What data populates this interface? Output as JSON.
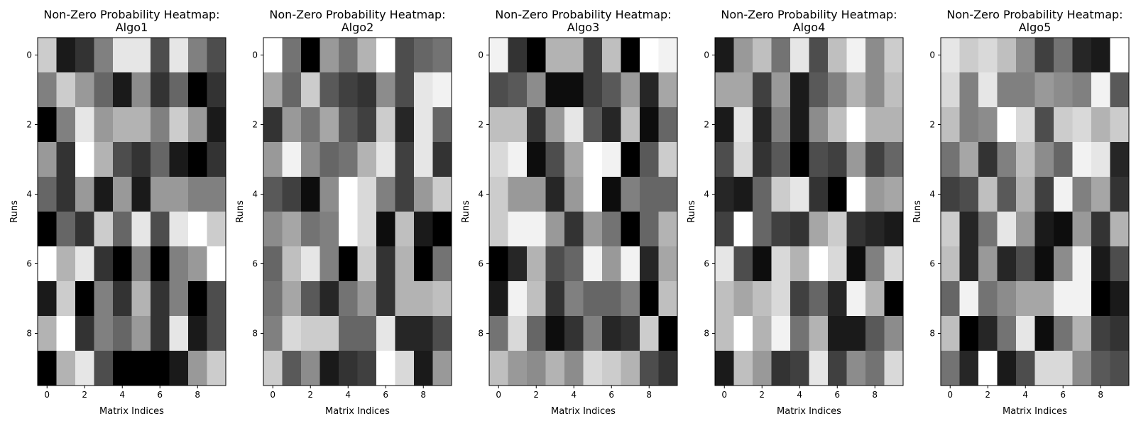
{
  "chart_data": [
    {
      "type": "heatmap",
      "colormap": "gray",
      "title_line1": "Non-Zero Probability Heatmap:",
      "title_line2": "Algo1",
      "xlabel": "Matrix Indices",
      "ylabel": "Runs",
      "x_ticks": [
        "0",
        "2",
        "4",
        "6",
        "8"
      ],
      "y_ticks": [
        "0",
        "2",
        "4",
        "6",
        "8"
      ],
      "values": [
        [
          0.8,
          0.1,
          0.2,
          0.5,
          0.9,
          0.9,
          0.3,
          0.9,
          0.5,
          0.3
        ],
        [
          0.5,
          0.8,
          0.6,
          0.4,
          0.1,
          0.55,
          0.2,
          0.4,
          0.0,
          0.2
        ],
        [
          0.0,
          0.5,
          0.9,
          0.6,
          0.7,
          0.7,
          0.5,
          0.8,
          0.6,
          0.1
        ],
        [
          0.6,
          0.2,
          1.0,
          0.7,
          0.3,
          0.2,
          0.4,
          0.1,
          0.0,
          0.2
        ],
        [
          0.4,
          0.2,
          0.6,
          0.1,
          0.6,
          0.1,
          0.6,
          0.6,
          0.5,
          0.5
        ],
        [
          0.0,
          0.4,
          0.2,
          0.8,
          0.4,
          0.9,
          0.3,
          0.9,
          1.0,
          0.8
        ],
        [
          1.0,
          0.7,
          0.9,
          0.2,
          0.0,
          0.5,
          0.0,
          0.5,
          0.6,
          1.0
        ],
        [
          0.1,
          0.8,
          0.0,
          0.5,
          0.2,
          0.7,
          0.2,
          0.5,
          0.0,
          0.3
        ],
        [
          0.7,
          1.0,
          0.2,
          0.5,
          0.4,
          0.6,
          0.2,
          0.9,
          0.1,
          0.3
        ],
        [
          0.0,
          0.7,
          0.9,
          0.3,
          0.0,
          0.0,
          0.0,
          0.1,
          0.6,
          0.8
        ]
      ]
    },
    {
      "type": "heatmap",
      "colormap": "gray",
      "title_line1": "Non-Zero Probability Heatmap:",
      "title_line2": "Algo2",
      "xlabel": "Matrix Indices",
      "ylabel": "Runs",
      "x_ticks": [
        "0",
        "2",
        "4",
        "6",
        "8"
      ],
      "y_ticks": [
        "0",
        "2",
        "4",
        "6",
        "8"
      ],
      "values": [
        [
          1.0,
          0.45,
          0.0,
          0.6,
          0.45,
          0.7,
          1.0,
          0.3,
          0.4,
          0.45
        ],
        [
          0.65,
          0.4,
          0.8,
          0.35,
          0.25,
          0.2,
          0.55,
          0.3,
          0.9,
          0.95
        ],
        [
          0.2,
          0.6,
          0.45,
          0.65,
          0.35,
          0.25,
          0.8,
          0.15,
          0.9,
          0.4
        ],
        [
          0.6,
          0.95,
          0.55,
          0.4,
          0.45,
          0.7,
          0.9,
          0.25,
          0.9,
          0.2
        ],
        [
          0.35,
          0.25,
          0.05,
          0.55,
          1.0,
          0.85,
          0.5,
          0.25,
          0.6,
          0.8
        ],
        [
          0.55,
          0.65,
          0.45,
          0.5,
          1.0,
          0.85,
          0.05,
          0.75,
          0.1,
          0.0
        ],
        [
          0.4,
          0.75,
          0.9,
          0.5,
          0.0,
          0.8,
          0.2,
          0.7,
          0.0,
          0.45
        ],
        [
          0.45,
          0.65,
          0.35,
          0.15,
          0.45,
          0.6,
          0.2,
          0.7,
          0.7,
          0.75
        ],
        [
          0.5,
          0.85,
          0.8,
          0.8,
          0.4,
          0.4,
          0.9,
          0.15,
          0.15,
          0.3
        ],
        [
          0.8,
          0.35,
          0.55,
          0.1,
          0.2,
          0.25,
          1.0,
          0.85,
          0.1,
          0.6
        ]
      ]
    },
    {
      "type": "heatmap",
      "colormap": "gray",
      "title_line1": "Non-Zero Probability Heatmap:",
      "title_line2": "Algo3",
      "xlabel": "Matrix Indices",
      "ylabel": "Runs",
      "x_ticks": [
        "0",
        "2",
        "4",
        "6",
        "8"
      ],
      "y_ticks": [
        "0",
        "2",
        "4",
        "6",
        "8"
      ],
      "values": [
        [
          0.95,
          0.2,
          0.0,
          0.7,
          0.7,
          0.25,
          0.75,
          0.0,
          1.0,
          0.95
        ],
        [
          0.3,
          0.35,
          0.55,
          0.05,
          0.05,
          0.25,
          0.35,
          0.6,
          0.15,
          0.65
        ],
        [
          0.75,
          0.75,
          0.2,
          0.6,
          0.9,
          0.35,
          0.15,
          0.75,
          0.05,
          0.4
        ],
        [
          0.85,
          0.95,
          0.05,
          0.3,
          0.65,
          1.0,
          0.95,
          0.0,
          0.35,
          0.8
        ],
        [
          0.8,
          0.6,
          0.6,
          0.15,
          0.6,
          1.0,
          0.05,
          0.5,
          0.4,
          0.4
        ],
        [
          0.8,
          0.95,
          0.95,
          0.6,
          0.2,
          0.6,
          0.45,
          0.0,
          0.4,
          0.7
        ],
        [
          0.0,
          0.15,
          0.7,
          0.3,
          0.4,
          0.95,
          0.6,
          0.95,
          0.15,
          0.65
        ],
        [
          0.1,
          0.95,
          0.75,
          0.2,
          0.5,
          0.4,
          0.4,
          0.5,
          0.0,
          0.75
        ],
        [
          0.45,
          0.85,
          0.4,
          0.05,
          0.2,
          0.5,
          0.15,
          0.2,
          0.8,
          0.0
        ],
        [
          0.75,
          0.6,
          0.55,
          0.7,
          0.55,
          0.85,
          0.8,
          0.7,
          0.3,
          0.2
        ]
      ]
    },
    {
      "type": "heatmap",
      "colormap": "gray",
      "title_line1": "Non-Zero Probability Heatmap:",
      "title_line2": "Algo4",
      "xlabel": "Matrix Indices",
      "ylabel": "Runs",
      "x_ticks": [
        "0",
        "2",
        "4",
        "6",
        "8"
      ],
      "y_ticks": [
        "0",
        "2",
        "4",
        "6",
        "8"
      ],
      "values": [
        [
          0.1,
          0.6,
          0.75,
          0.45,
          0.9,
          0.3,
          0.75,
          0.95,
          0.55,
          0.8
        ],
        [
          0.65,
          0.65,
          0.25,
          0.6,
          0.1,
          0.35,
          0.5,
          0.7,
          0.55,
          0.75
        ],
        [
          0.1,
          0.9,
          0.15,
          0.5,
          0.1,
          0.55,
          0.75,
          1.0,
          0.7,
          0.7
        ],
        [
          0.3,
          0.85,
          0.2,
          0.35,
          0.0,
          0.3,
          0.25,
          0.6,
          0.25,
          0.4
        ],
        [
          0.15,
          0.1,
          0.4,
          0.8,
          0.9,
          0.2,
          0.0,
          1.0,
          0.6,
          0.65
        ],
        [
          0.25,
          1.0,
          0.4,
          0.25,
          0.2,
          0.65,
          0.8,
          0.2,
          0.15,
          0.1
        ],
        [
          0.9,
          0.3,
          0.05,
          0.85,
          0.7,
          1.0,
          0.85,
          0.05,
          0.5,
          0.85
        ],
        [
          0.75,
          0.65,
          0.75,
          0.85,
          0.25,
          0.4,
          0.15,
          0.95,
          0.7,
          0.0
        ],
        [
          0.75,
          1.0,
          0.7,
          0.95,
          0.45,
          0.7,
          0.1,
          0.1,
          0.35,
          0.55
        ],
        [
          0.1,
          0.75,
          0.6,
          0.2,
          0.25,
          0.9,
          0.25,
          0.55,
          0.45,
          0.85
        ]
      ]
    },
    {
      "type": "heatmap",
      "colormap": "gray",
      "title_line1": "Non-Zero Probability Heatmap:",
      "title_line2": "Algo5",
      "xlabel": "Matrix Indices",
      "ylabel": "Runs",
      "x_ticks": [
        "0",
        "2",
        "4",
        "6",
        "8"
      ],
      "y_ticks": [
        "0",
        "2",
        "4",
        "6",
        "8"
      ],
      "values": [
        [
          0.9,
          0.8,
          0.85,
          0.75,
          0.55,
          0.25,
          0.45,
          0.15,
          0.1,
          1.0
        ],
        [
          0.85,
          0.5,
          0.9,
          0.5,
          0.5,
          0.6,
          0.55,
          0.5,
          0.95,
          0.35
        ],
        [
          0.75,
          0.5,
          0.55,
          1.0,
          0.85,
          0.3,
          0.8,
          0.85,
          0.7,
          0.8
        ],
        [
          0.45,
          0.65,
          0.2,
          0.5,
          0.75,
          0.55,
          0.4,
          0.95,
          0.9,
          0.15
        ],
        [
          0.25,
          0.3,
          0.75,
          0.35,
          0.7,
          0.25,
          0.95,
          0.5,
          0.65,
          0.2
        ],
        [
          0.8,
          0.15,
          0.45,
          0.9,
          0.6,
          0.1,
          0.05,
          0.6,
          0.2,
          0.7
        ],
        [
          0.75,
          0.15,
          0.6,
          0.15,
          0.3,
          0.05,
          0.55,
          0.95,
          0.1,
          0.3
        ],
        [
          0.4,
          0.95,
          0.45,
          0.55,
          0.65,
          0.65,
          0.95,
          0.95,
          0.0,
          0.1
        ],
        [
          0.75,
          0.0,
          0.15,
          0.45,
          0.9,
          0.05,
          0.45,
          0.7,
          0.25,
          0.2
        ],
        [
          0.45,
          0.15,
          1.0,
          0.1,
          0.3,
          0.85,
          0.85,
          0.55,
          0.35,
          0.3
        ]
      ]
    }
  ]
}
